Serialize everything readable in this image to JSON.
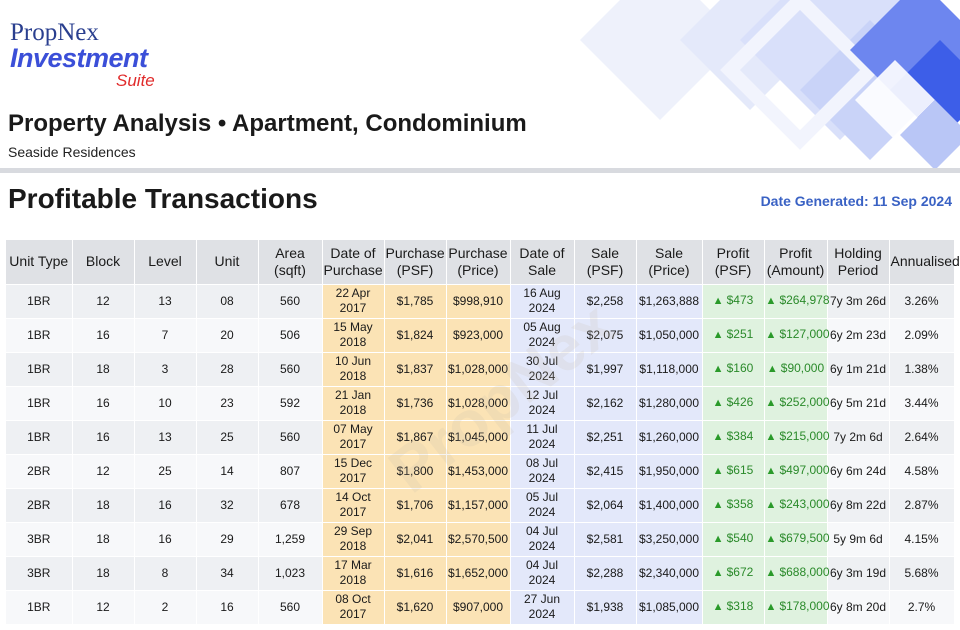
{
  "logo": {
    "brand": "PropNex",
    "main": "Investment",
    "sub": "Suite"
  },
  "title": "Property Analysis • Apartment, Condominium",
  "subtitle": "Seaside Residences",
  "section_title": "Profitable Transactions",
  "date_generated": "Date Generated: 11 Sep 2024",
  "watermark": "PropNex",
  "colors": {
    "purchase_bg": "#fbe3b5",
    "sale_bg": "#e3e8fa",
    "profit_bg": "#dff2df",
    "profit_text": "#2a8a2a",
    "date_text": "#3a62c4",
    "header_bg": "#dfe1e5"
  },
  "table": {
    "headers": [
      "Unit Type",
      "Block",
      "Level",
      "Unit",
      "Area (sqft)",
      "Date of Purchase",
      "Purchase (PSF)",
      "Purchase (Price)",
      "Date of Sale",
      "Sale (PSF)",
      "Sale (Price)",
      "Profit (PSF)",
      "Profit (Amount)",
      "Holding Period",
      "Annualised"
    ],
    "rows": [
      [
        "1BR",
        "12",
        "13",
        "08",
        "560",
        "22 Apr 2017",
        "$1,785",
        "$998,910",
        "16 Aug 2024",
        "$2,258",
        "$1,263,888",
        "$473",
        "$264,978",
        "7y 3m 26d",
        "3.26%"
      ],
      [
        "1BR",
        "16",
        "7",
        "20",
        "506",
        "15 May 2018",
        "$1,824",
        "$923,000",
        "05 Aug 2024",
        "$2,075",
        "$1,050,000",
        "$251",
        "$127,000",
        "6y 2m 23d",
        "2.09%"
      ],
      [
        "1BR",
        "18",
        "3",
        "28",
        "560",
        "10 Jun 2018",
        "$1,837",
        "$1,028,000",
        "30 Jul 2024",
        "$1,997",
        "$1,118,000",
        "$160",
        "$90,000",
        "6y 1m 21d",
        "1.38%"
      ],
      [
        "1BR",
        "16",
        "10",
        "23",
        "592",
        "21 Jan 2018",
        "$1,736",
        "$1,028,000",
        "12 Jul 2024",
        "$2,162",
        "$1,280,000",
        "$426",
        "$252,000",
        "6y 5m 21d",
        "3.44%"
      ],
      [
        "1BR",
        "16",
        "13",
        "25",
        "560",
        "07 May 2017",
        "$1,867",
        "$1,045,000",
        "11 Jul 2024",
        "$2,251",
        "$1,260,000",
        "$384",
        "$215,000",
        "7y 2m 6d",
        "2.64%"
      ],
      [
        "2BR",
        "12",
        "25",
        "14",
        "807",
        "15 Dec 2017",
        "$1,800",
        "$1,453,000",
        "08 Jul 2024",
        "$2,415",
        "$1,950,000",
        "$615",
        "$497,000",
        "6y 6m 24d",
        "4.58%"
      ],
      [
        "2BR",
        "18",
        "16",
        "32",
        "678",
        "14 Oct 2017",
        "$1,706",
        "$1,157,000",
        "05 Jul 2024",
        "$2,064",
        "$1,400,000",
        "$358",
        "$243,000",
        "6y 8m 22d",
        "2.87%"
      ],
      [
        "3BR",
        "18",
        "16",
        "29",
        "1,259",
        "29 Sep 2018",
        "$2,041",
        "$2,570,500",
        "04 Jul 2024",
        "$2,581",
        "$3,250,000",
        "$540",
        "$679,500",
        "5y 9m 6d",
        "4.15%"
      ],
      [
        "3BR",
        "18",
        "8",
        "34",
        "1,023",
        "17 Mar 2018",
        "$1,616",
        "$1,652,000",
        "04 Jul 2024",
        "$2,288",
        "$2,340,000",
        "$672",
        "$688,000",
        "6y 3m 19d",
        "5.68%"
      ],
      [
        "1BR",
        "12",
        "2",
        "16",
        "560",
        "08 Oct 2017",
        "$1,620",
        "$907,000",
        "27 Jun 2024",
        "$1,938",
        "$1,085,000",
        "$318",
        "$178,000",
        "6y 8m 20d",
        "2.7%"
      ]
    ]
  }
}
